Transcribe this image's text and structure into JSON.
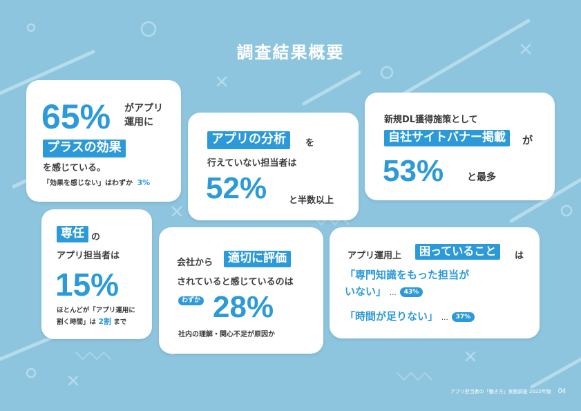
{
  "title": "調査結果概要",
  "colors": {
    "background": "#8ec5de",
    "accent": "#2c9ad8",
    "text": "#3b3b3b"
  },
  "card1": {
    "big": "65%",
    "line1": "がアプリ",
    "line2": "運用に",
    "highlight": "プラスの効果",
    "line3": "を感じている。",
    "note": "「効果を感じない」はわずか",
    "note_value": "3%"
  },
  "card2": {
    "highlight": "アプリの分析",
    "suffix": "を",
    "line1": "行えていない担当者は",
    "big": "52%",
    "tail": "と半数以上"
  },
  "card3": {
    "line1": "新規DL獲得施策として",
    "highlight": "自社サイトバナー掲載",
    "suffix": "が",
    "big": "53%",
    "tail": "と最多"
  },
  "card4": {
    "highlight": "専任",
    "suffix": "の",
    "line1": "アプリ担当者は",
    "big": "15%",
    "note1": "ほとんどが「アプリ運用に",
    "note2_prefix": "割く時間」は",
    "note2_value": "2割",
    "note2_suffix": "まで"
  },
  "card5": {
    "prefix": "会社から",
    "highlight": "適切に評価",
    "line1": "されていると感じているのは",
    "badge": "わずか",
    "big": "28%",
    "note": "社内の理解・関心不足が原因か"
  },
  "card6": {
    "prefix": "アプリ運用上",
    "highlight": "困っていること",
    "suffix": "は",
    "item1_line1": "「専門知識をもった担当が",
    "item1_line2": "いない」",
    "item1_dots": "…",
    "item1_value": "43%",
    "item2": "「時間が足りない」",
    "item2_dots": "…",
    "item2_value": "37%"
  },
  "footer": {
    "text": "アプリ担当者の「働き方」実態調査 2022年版",
    "page": "04"
  }
}
